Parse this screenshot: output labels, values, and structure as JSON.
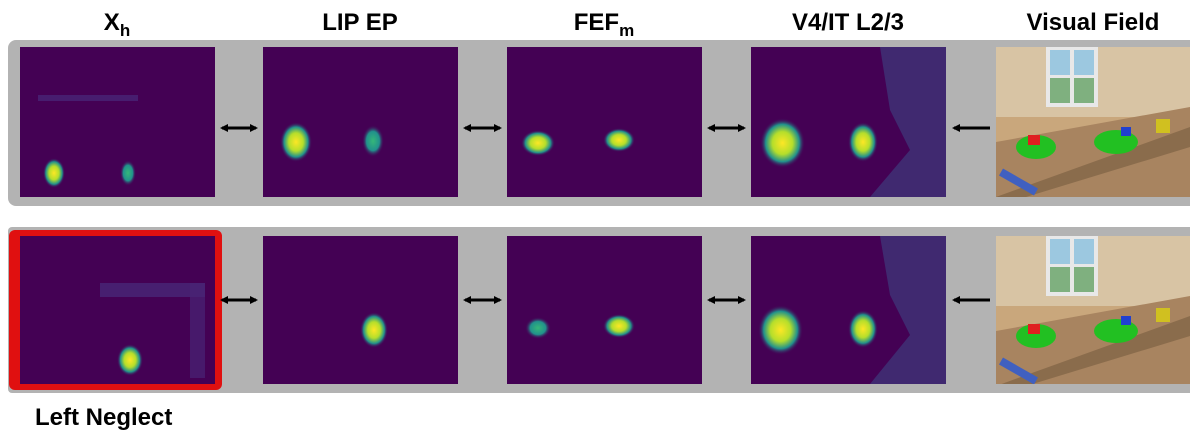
{
  "titles": [
    {
      "text": "X",
      "sub": "h"
    },
    {
      "text": "LIP EP"
    },
    {
      "text": "FEF",
      "sub": "m"
    },
    {
      "text": "V4/IT L2/3"
    },
    {
      "text": "Visual Field"
    }
  ],
  "condition_label": "Left Neglect"
}
